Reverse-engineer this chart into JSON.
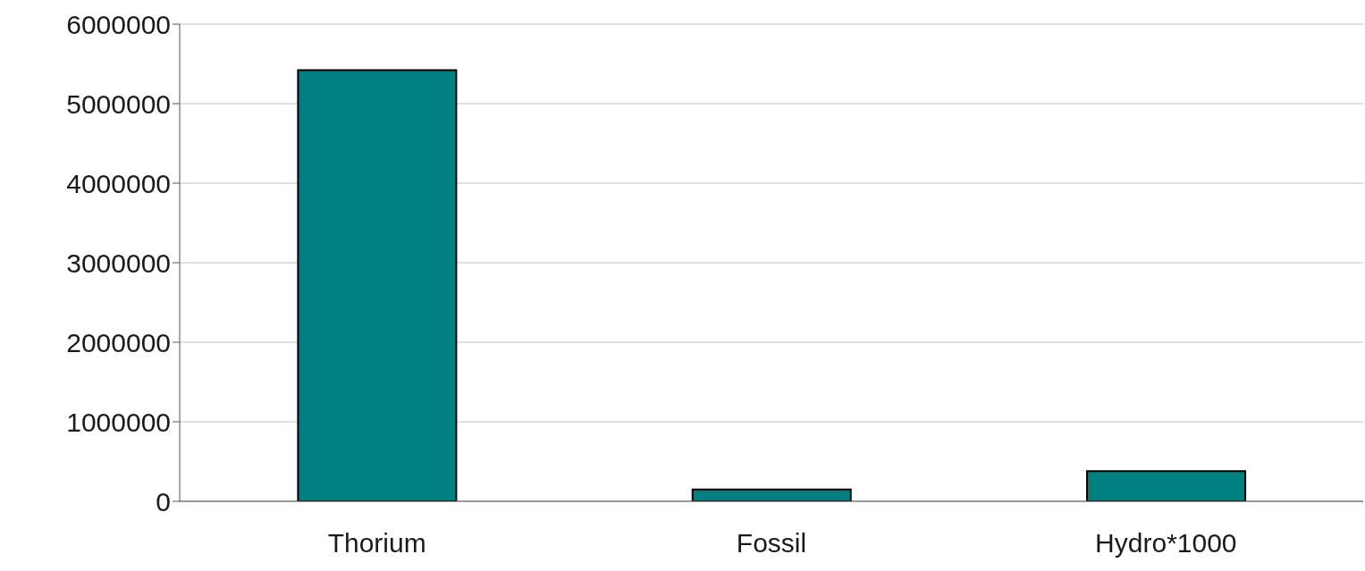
{
  "chart_data": {
    "type": "bar",
    "categories": [
      "Thorium",
      "Fossil",
      "Hydro*1000"
    ],
    "values": [
      5420000,
      150000,
      380000
    ],
    "color": "#008080",
    "ylim": [
      0,
      6000000
    ],
    "yticks": [
      0,
      1000000,
      2000000,
      3000000,
      4000000,
      5000000,
      6000000
    ],
    "grid": "y"
  }
}
